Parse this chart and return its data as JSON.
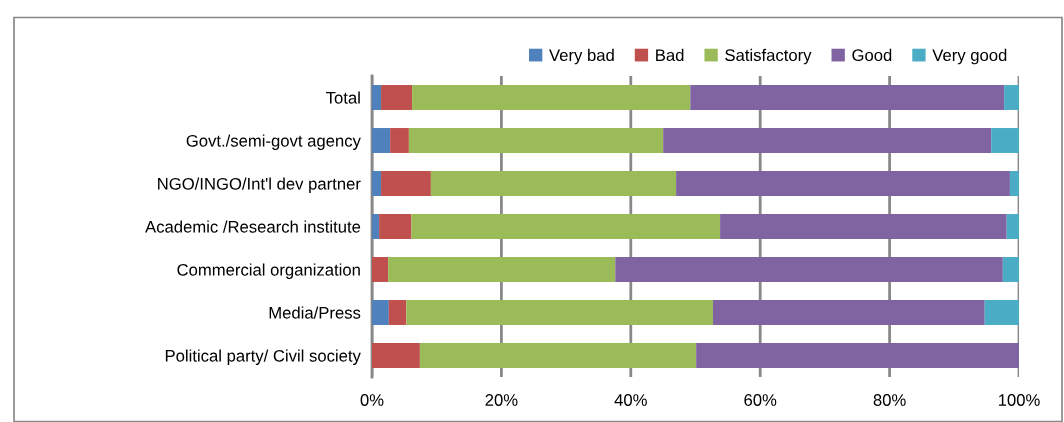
{
  "chart_data": {
    "type": "bar",
    "orientation": "horizontal",
    "stacked": true,
    "categories": [
      "Total",
      "Govt./semi-govt agency",
      "NGO/INGO/Int'l dev partner",
      "Academic /Research institute",
      "Commercial organization",
      "Media/Press",
      "Political party/ Civil society"
    ],
    "series": [
      {
        "name": "Very bad",
        "color": "#4f81bd",
        "values": [
          1.4,
          2.8,
          1.4,
          1.1,
          0,
          2.6,
          0
        ]
      },
      {
        "name": "Bad",
        "color": "#c0504d",
        "values": [
          4.8,
          2.9,
          7.7,
          5.0,
          2.5,
          2.7,
          7.4
        ]
      },
      {
        "name": "Satisfactory",
        "color": "#9bbb59",
        "values": [
          43.0,
          39.3,
          37.9,
          47.7,
          35.1,
          47.4,
          42.7
        ]
      },
      {
        "name": "Good",
        "color": "#8064a2",
        "values": [
          48.5,
          50.7,
          51.6,
          44.3,
          59.9,
          42.0,
          49.9
        ]
      },
      {
        "name": "Very good",
        "color": "#4bacc6",
        "values": [
          2.3,
          4.3,
          1.4,
          1.9,
          2.5,
          5.3,
          0
        ]
      }
    ],
    "xlim": [
      0,
      100
    ],
    "xticks": [
      {
        "value": 0,
        "label": "0%"
      },
      {
        "value": 20,
        "label": "20%"
      },
      {
        "value": 40,
        "label": "40%"
      },
      {
        "value": 60,
        "label": "60%"
      },
      {
        "value": 80,
        "label": "80%"
      },
      {
        "value": 100,
        "label": "100%"
      }
    ],
    "grid": "x",
    "legend": "top"
  }
}
